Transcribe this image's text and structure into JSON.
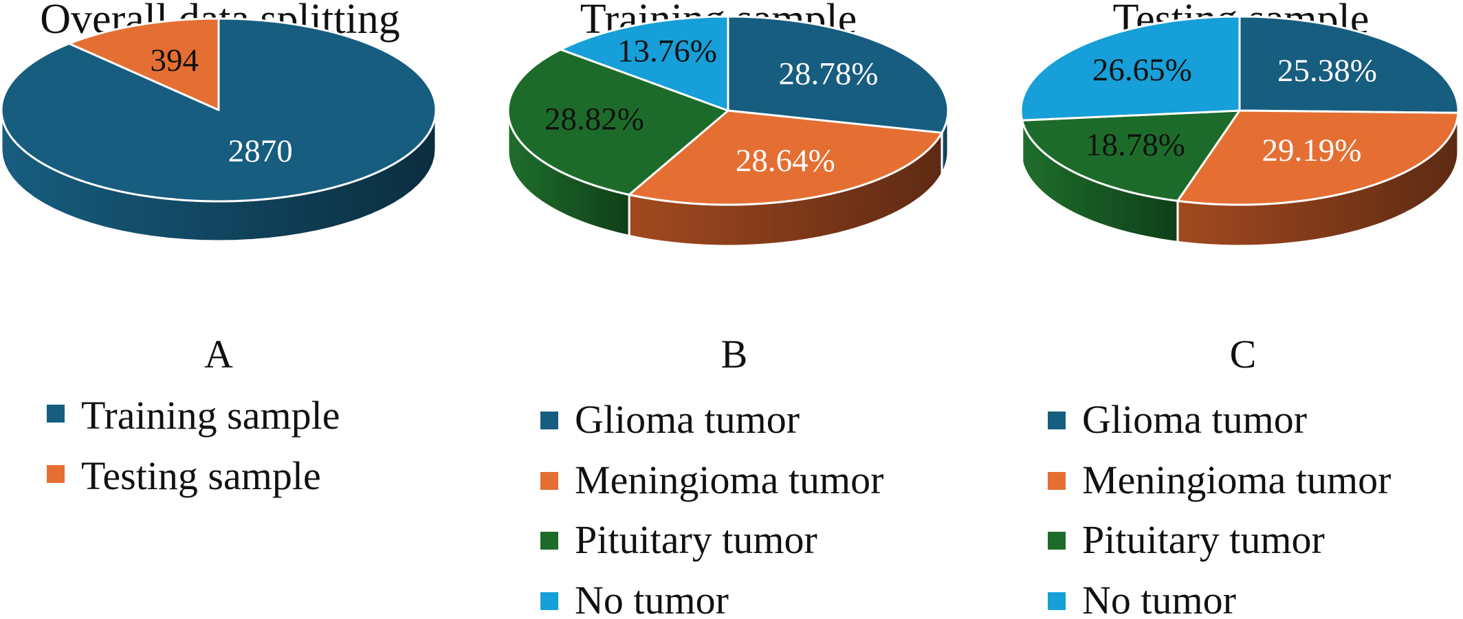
{
  "colors": {
    "glioma": "#175d7f",
    "meningioma": "#e56f33",
    "pituitary": "#1d6b2a",
    "no_tumor": "#169fd8"
  },
  "chart_data": [
    {
      "type": "pie",
      "title": "Overall data splitting",
      "panel_label": "A",
      "slices": [
        {
          "label": "Training sample",
          "value": 2870,
          "display": "2870",
          "color": "#175d7f",
          "text_color": "#ffffff"
        },
        {
          "label": "Testing sample",
          "value": 394,
          "display": "394",
          "color": "#e56f33",
          "text_color": "#111111"
        }
      ],
      "legend": [
        "Training sample",
        "Testing sample"
      ],
      "legend_placement": "bottom"
    },
    {
      "type": "pie",
      "title": "Training sample",
      "panel_label": "B",
      "slices": [
        {
          "label": "Glioma tumor",
          "value": 28.78,
          "display": "28.78%",
          "color": "#175d7f",
          "text_color": "#ffffff"
        },
        {
          "label": "Meningioma tumor",
          "value": 28.64,
          "display": "28.64%",
          "color": "#e56f33",
          "text_color": "#ffffff"
        },
        {
          "label": "Pituitary tumor",
          "value": 28.82,
          "display": "28.82%",
          "color": "#1d6b2a",
          "text_color": "#111111"
        },
        {
          "label": "No tumor",
          "value": 13.76,
          "display": "13.76%",
          "color": "#169fd8",
          "text_color": "#111111"
        }
      ],
      "legend": [
        "Glioma tumor",
        "Meningioma tumor",
        "Pituitary tumor",
        "No tumor"
      ],
      "legend_placement": "bottom"
    },
    {
      "type": "pie",
      "title": "Testing sample",
      "panel_label": "C",
      "slices": [
        {
          "label": "Glioma tumor",
          "value": 25.38,
          "display": "25.38%",
          "color": "#175d7f",
          "text_color": "#ffffff"
        },
        {
          "label": "Meningioma tumor",
          "value": 29.19,
          "display": "29.19%",
          "color": "#e56f33",
          "text_color": "#ffffff"
        },
        {
          "label": "Pituitary tumor",
          "value": 18.78,
          "display": "18.78%",
          "color": "#1d6b2a",
          "text_color": "#111111"
        },
        {
          "label": "No tumor",
          "value": 26.65,
          "display": "26.65%",
          "color": "#169fd8",
          "text_color": "#111111"
        }
      ],
      "legend": [
        "Glioma tumor",
        "Meningioma tumor",
        "Pituitary tumor",
        "No tumor"
      ],
      "legend_placement": "bottom"
    }
  ]
}
